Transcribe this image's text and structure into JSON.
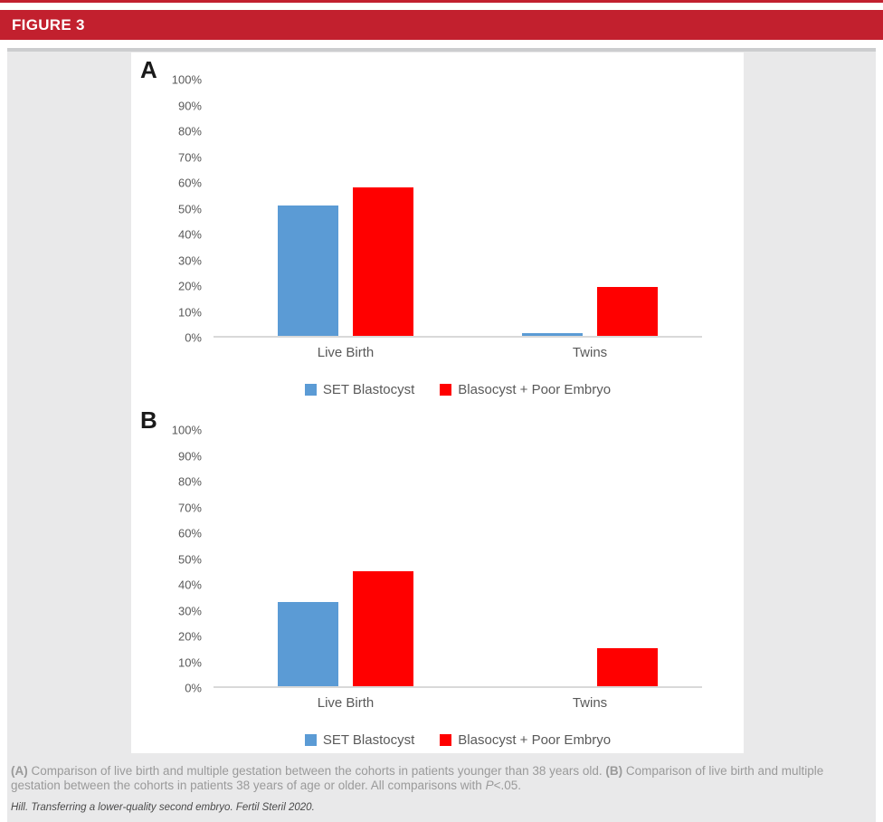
{
  "header": {
    "title": "FIGURE 3"
  },
  "colors": {
    "header_red": "#c2202e",
    "series_blue": "#5B9BD5",
    "series_red": "#FF0000",
    "background_gray": "#e9e9ea",
    "axis_line": "#d9d9d9",
    "tick_text": "#595959"
  },
  "chart_data": [
    {
      "type": "bar",
      "panel_label": "A",
      "title": "",
      "categories": [
        "Live Birth",
        "Twins"
      ],
      "series": [
        {
          "name": "SET Blastocyst",
          "color": "#5B9BD5",
          "values": [
            51,
            1
          ]
        },
        {
          "name": "Blasocyst + Poor Embryo",
          "color": "#FF0000",
          "values": [
            58,
            19
          ]
        }
      ],
      "xlabel": "",
      "ylabel": "",
      "ylim": [
        0,
        100
      ],
      "y_ticks": [
        "100%",
        "90%",
        "80%",
        "70%",
        "60%",
        "50%",
        "40%",
        "30%",
        "20%",
        "10%",
        "0%"
      ],
      "grid": false,
      "legend_position": "bottom"
    },
    {
      "type": "bar",
      "panel_label": "B",
      "title": "",
      "categories": [
        "Live Birth",
        "Twins"
      ],
      "series": [
        {
          "name": "SET Blastocyst",
          "color": "#5B9BD5",
          "values": [
            33,
            0
          ]
        },
        {
          "name": "Blasocyst + Poor Embryo",
          "color": "#FF0000",
          "values": [
            45,
            15
          ]
        }
      ],
      "xlabel": "",
      "ylabel": "",
      "ylim": [
        0,
        100
      ],
      "y_ticks": [
        "100%",
        "90%",
        "80%",
        "70%",
        "60%",
        "50%",
        "40%",
        "30%",
        "20%",
        "10%",
        "0%"
      ],
      "grid": false,
      "legend_position": "bottom"
    }
  ],
  "caption": {
    "a_label": "(A)",
    "a_text": " Comparison of live birth and multiple gestation between the cohorts in patients younger than 38 years old. ",
    "b_label": "(B)",
    "b_text": " Comparison of live birth and multiple gestation between the cohorts in patients 38 years of age or older. All comparisons with ",
    "p_var": "P",
    "p_rest": "<.05."
  },
  "citation": "Hill. Transferring a lower-quality second embryo. Fertil Steril 2020."
}
